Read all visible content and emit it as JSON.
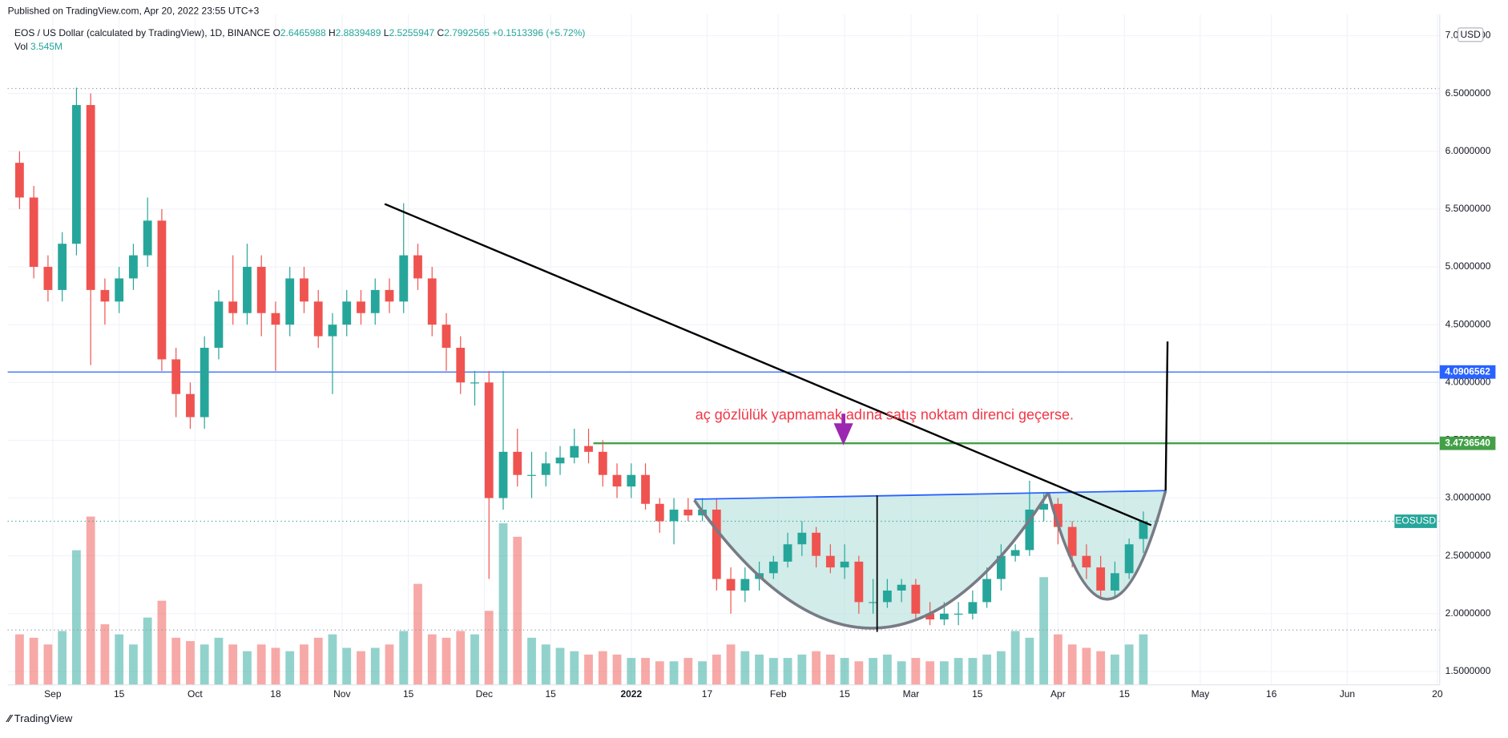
{
  "published": "Published on TradingView.com, Apr 20, 2022 23:55 UTC+3",
  "footer": "TradingView",
  "chart_data": {
    "type": "candlestick",
    "title": "EOS / US Dollar (calculated by TradingView), 1D, BINANCE",
    "ohlc": {
      "o_label": "O",
      "open": 2.6465988,
      "h_label": "H",
      "high": 2.8839489,
      "l_label": "L",
      "low": 2.5255947,
      "c_label": "C",
      "close": 2.7992565,
      "change": {
        "value": 0.1513396,
        "label": "+0.1513396"
      },
      "change_pct": {
        "value": 5.72,
        "label": "(+5.72%)"
      }
    },
    "volume_label": "Vol",
    "volume_now": {
      "value": 3545000,
      "label": "3.545M"
    },
    "currency": "USD",
    "symbol": "EOSUSD",
    "annotation": "aç gözlülük yapmamak adına satış noktam direnci geçerse.",
    "up_color": "#26a69a",
    "down_color": "#ef5350",
    "xlim": [
      -9.5,
      292.5
    ],
    "ylim": [
      1.384,
      7.183
    ],
    "xticks": [
      {
        "value": 0,
        "label": "Sep"
      },
      {
        "value": 14,
        "label": "15"
      },
      {
        "value": 30,
        "label": "Oct"
      },
      {
        "value": 47,
        "label": "18"
      },
      {
        "value": 61,
        "label": "Nov"
      },
      {
        "value": 75,
        "label": "15"
      },
      {
        "value": 91,
        "label": "Dec"
      },
      {
        "value": 105,
        "label": "15"
      },
      {
        "value": 122,
        "label": "2022"
      },
      {
        "value": 138,
        "label": "17"
      },
      {
        "value": 153,
        "label": "Feb"
      },
      {
        "value": 167,
        "label": "15"
      },
      {
        "value": 181,
        "label": "Mar"
      },
      {
        "value": 195,
        "label": "15"
      },
      {
        "value": 212,
        "label": "Apr"
      },
      {
        "value": 226,
        "label": "15"
      },
      {
        "value": 242,
        "label": "May"
      },
      {
        "value": 257,
        "label": "16"
      },
      {
        "value": 273,
        "label": "Jun"
      },
      {
        "value": 292,
        "label": "20"
      }
    ],
    "yticks": [
      {
        "value": 1.5,
        "label": "1.5000000"
      },
      {
        "value": 2,
        "label": "2.0000000"
      },
      {
        "value": 2.5,
        "label": "2.5000000"
      },
      {
        "value": 3,
        "label": "3.0000000"
      },
      {
        "value": 3.5,
        "label": "3.5000000"
      },
      {
        "value": 4,
        "label": "4.0000000"
      },
      {
        "value": 4.5,
        "label": "4.5000000"
      },
      {
        "value": 5,
        "label": "5.0000000"
      },
      {
        "value": 5.5,
        "label": "5.5000000"
      },
      {
        "value": 6,
        "label": "6.0000000"
      },
      {
        "value": 6.5,
        "label": "6.5000000"
      },
      {
        "value": 7,
        "label": "7.0000000"
      }
    ],
    "levels": [
      {
        "value": 4.0906562,
        "color": "#2962ff"
      },
      {
        "value": {
          "value": 3.473654,
          "label": "3.4736540"
        },
        "color": "#43a047"
      }
    ],
    "candles": [
      [
        -7,
        5.9,
        6.0,
        5.5,
        5.6
      ],
      [
        -4,
        5.6,
        5.7,
        4.9,
        5.0
      ],
      [
        -1,
        5.0,
        5.1,
        4.7,
        4.8
      ],
      [
        2,
        4.8,
        5.3,
        4.7,
        5.2
      ],
      [
        5,
        5.2,
        6.55,
        5.1,
        6.4
      ],
      [
        8,
        6.4,
        6.5,
        4.15,
        4.8
      ],
      [
        11,
        4.8,
        4.9,
        4.5,
        4.7
      ],
      [
        14,
        4.7,
        5.0,
        4.6,
        4.9
      ],
      [
        17,
        4.9,
        5.2,
        4.8,
        5.1
      ],
      [
        20,
        5.1,
        5.6,
        5.0,
        5.4
      ],
      [
        23,
        5.4,
        5.5,
        4.1,
        4.2
      ],
      [
        26,
        4.2,
        4.3,
        3.7,
        3.9
      ],
      [
        29,
        3.9,
        4.0,
        3.6,
        3.7
      ],
      [
        32,
        3.7,
        4.4,
        3.6,
        4.3
      ],
      [
        35,
        4.3,
        4.8,
        4.2,
        4.7
      ],
      [
        38,
        4.7,
        5.1,
        4.5,
        4.6
      ],
      [
        41,
        4.6,
        5.2,
        4.5,
        5.0
      ],
      [
        44,
        5.0,
        5.1,
        4.4,
        4.6
      ],
      [
        47,
        4.6,
        4.7,
        4.1,
        4.5
      ],
      [
        50,
        4.5,
        5.0,
        4.4,
        4.9
      ],
      [
        53,
        4.9,
        5.0,
        4.6,
        4.7
      ],
      [
        56,
        4.7,
        4.8,
        4.3,
        4.4
      ],
      [
        59,
        4.4,
        4.6,
        3.9,
        4.5
      ],
      [
        62,
        4.5,
        4.8,
        4.4,
        4.7
      ],
      [
        65,
        4.7,
        4.8,
        4.5,
        4.6
      ],
      [
        68,
        4.6,
        4.9,
        4.5,
        4.8
      ],
      [
        71,
        4.8,
        4.9,
        4.6,
        4.7
      ],
      [
        74,
        4.7,
        5.55,
        4.6,
        5.1
      ],
      [
        77,
        5.1,
        5.2,
        4.8,
        4.9
      ],
      [
        80,
        4.9,
        5.0,
        4.4,
        4.5
      ],
      [
        83,
        4.5,
        4.6,
        4.1,
        4.3
      ],
      [
        86,
        4.3,
        4.4,
        3.9,
        4.0
      ],
      [
        89,
        4.0,
        4.1,
        3.8,
        4.0
      ],
      [
        92,
        4.0,
        4.1,
        2.3,
        3.0
      ],
      [
        95,
        3.0,
        4.1,
        2.9,
        3.4
      ],
      [
        98,
        3.4,
        3.6,
        3.1,
        3.2
      ],
      [
        101,
        3.2,
        3.4,
        3.0,
        3.2
      ],
      [
        104,
        3.2,
        3.4,
        3.1,
        3.3
      ],
      [
        107,
        3.3,
        3.45,
        3.2,
        3.35
      ],
      [
        110,
        3.35,
        3.6,
        3.3,
        3.45
      ],
      [
        113,
        3.45,
        3.6,
        3.3,
        3.4
      ],
      [
        116,
        3.4,
        3.5,
        3.1,
        3.2
      ],
      [
        119,
        3.2,
        3.3,
        3.0,
        3.1
      ],
      [
        122,
        3.1,
        3.3,
        3.0,
        3.2
      ],
      [
        125,
        3.2,
        3.3,
        2.9,
        2.95
      ],
      [
        128,
        2.95,
        3.0,
        2.7,
        2.8
      ],
      [
        131,
        2.8,
        3.0,
        2.6,
        2.9
      ],
      [
        134,
        2.9,
        3.0,
        2.8,
        2.85
      ],
      [
        137,
        2.85,
        3.0,
        2.8,
        2.9
      ],
      [
        140,
        2.9,
        3.0,
        2.2,
        2.3
      ],
      [
        143,
        2.3,
        2.4,
        2.0,
        2.2
      ],
      [
        146,
        2.2,
        2.4,
        2.1,
        2.3
      ],
      [
        149,
        2.3,
        2.45,
        2.2,
        2.35
      ],
      [
        152,
        2.35,
        2.5,
        2.3,
        2.45
      ],
      [
        155,
        2.45,
        2.7,
        2.4,
        2.6
      ],
      [
        158,
        2.6,
        2.8,
        2.5,
        2.7
      ],
      [
        161,
        2.7,
        2.75,
        2.4,
        2.5
      ],
      [
        164,
        2.5,
        2.6,
        2.35,
        2.4
      ],
      [
        167,
        2.4,
        2.6,
        2.3,
        2.45
      ],
      [
        170,
        2.45,
        2.5,
        2.0,
        2.1
      ],
      [
        173,
        2.1,
        2.3,
        2.0,
        2.1
      ],
      [
        176,
        2.1,
        2.3,
        2.05,
        2.2
      ],
      [
        179,
        2.2,
        2.3,
        2.1,
        2.25
      ],
      [
        182,
        2.25,
        2.3,
        1.95,
        2.0
      ],
      [
        185,
        2.0,
        2.1,
        1.9,
        1.95
      ],
      [
        188,
        1.95,
        2.1,
        1.9,
        2.0
      ],
      [
        191,
        2.0,
        2.1,
        1.9,
        2.0
      ],
      [
        194,
        2.0,
        2.2,
        1.95,
        2.1
      ],
      [
        197,
        2.1,
        2.4,
        2.05,
        2.3
      ],
      [
        200,
        2.3,
        2.6,
        2.2,
        2.5
      ],
      [
        203,
        2.5,
        2.6,
        2.45,
        2.55
      ],
      [
        206,
        2.55,
        3.15,
        2.5,
        2.9
      ],
      [
        209,
        2.9,
        3.05,
        2.8,
        2.95
      ],
      [
        212,
        2.95,
        3.0,
        2.6,
        2.75
      ],
      [
        215,
        2.75,
        2.8,
        2.4,
        2.5
      ],
      [
        218,
        2.5,
        2.6,
        2.3,
        2.4
      ],
      [
        221,
        2.4,
        2.5,
        2.15,
        2.2
      ],
      [
        224,
        2.2,
        2.45,
        2.15,
        2.35
      ],
      [
        227,
        2.35,
        2.65,
        2.3,
        2.6
      ],
      [
        230,
        2.6465988,
        2.8839489,
        2.5255947,
        2.7992565
      ]
    ],
    "volumes": [
      15,
      14,
      12,
      16,
      40,
      50,
      18,
      15,
      12,
      20,
      25,
      14,
      13,
      12,
      14,
      12,
      10,
      12,
      11,
      10,
      12,
      14,
      15,
      11,
      10,
      11,
      12,
      16,
      30,
      15,
      14,
      16,
      15,
      22,
      48,
      44,
      14,
      12,
      11,
      10,
      9,
      10,
      9,
      8,
      8,
      7,
      7,
      8,
      7,
      9,
      12,
      10,
      9,
      8,
      8,
      9,
      10,
      9,
      8,
      7,
      8,
      9,
      7,
      8,
      7,
      7,
      8,
      8,
      9,
      10,
      16,
      14,
      32,
      15,
      12,
      11,
      10,
      9,
      12,
      15
    ]
  }
}
